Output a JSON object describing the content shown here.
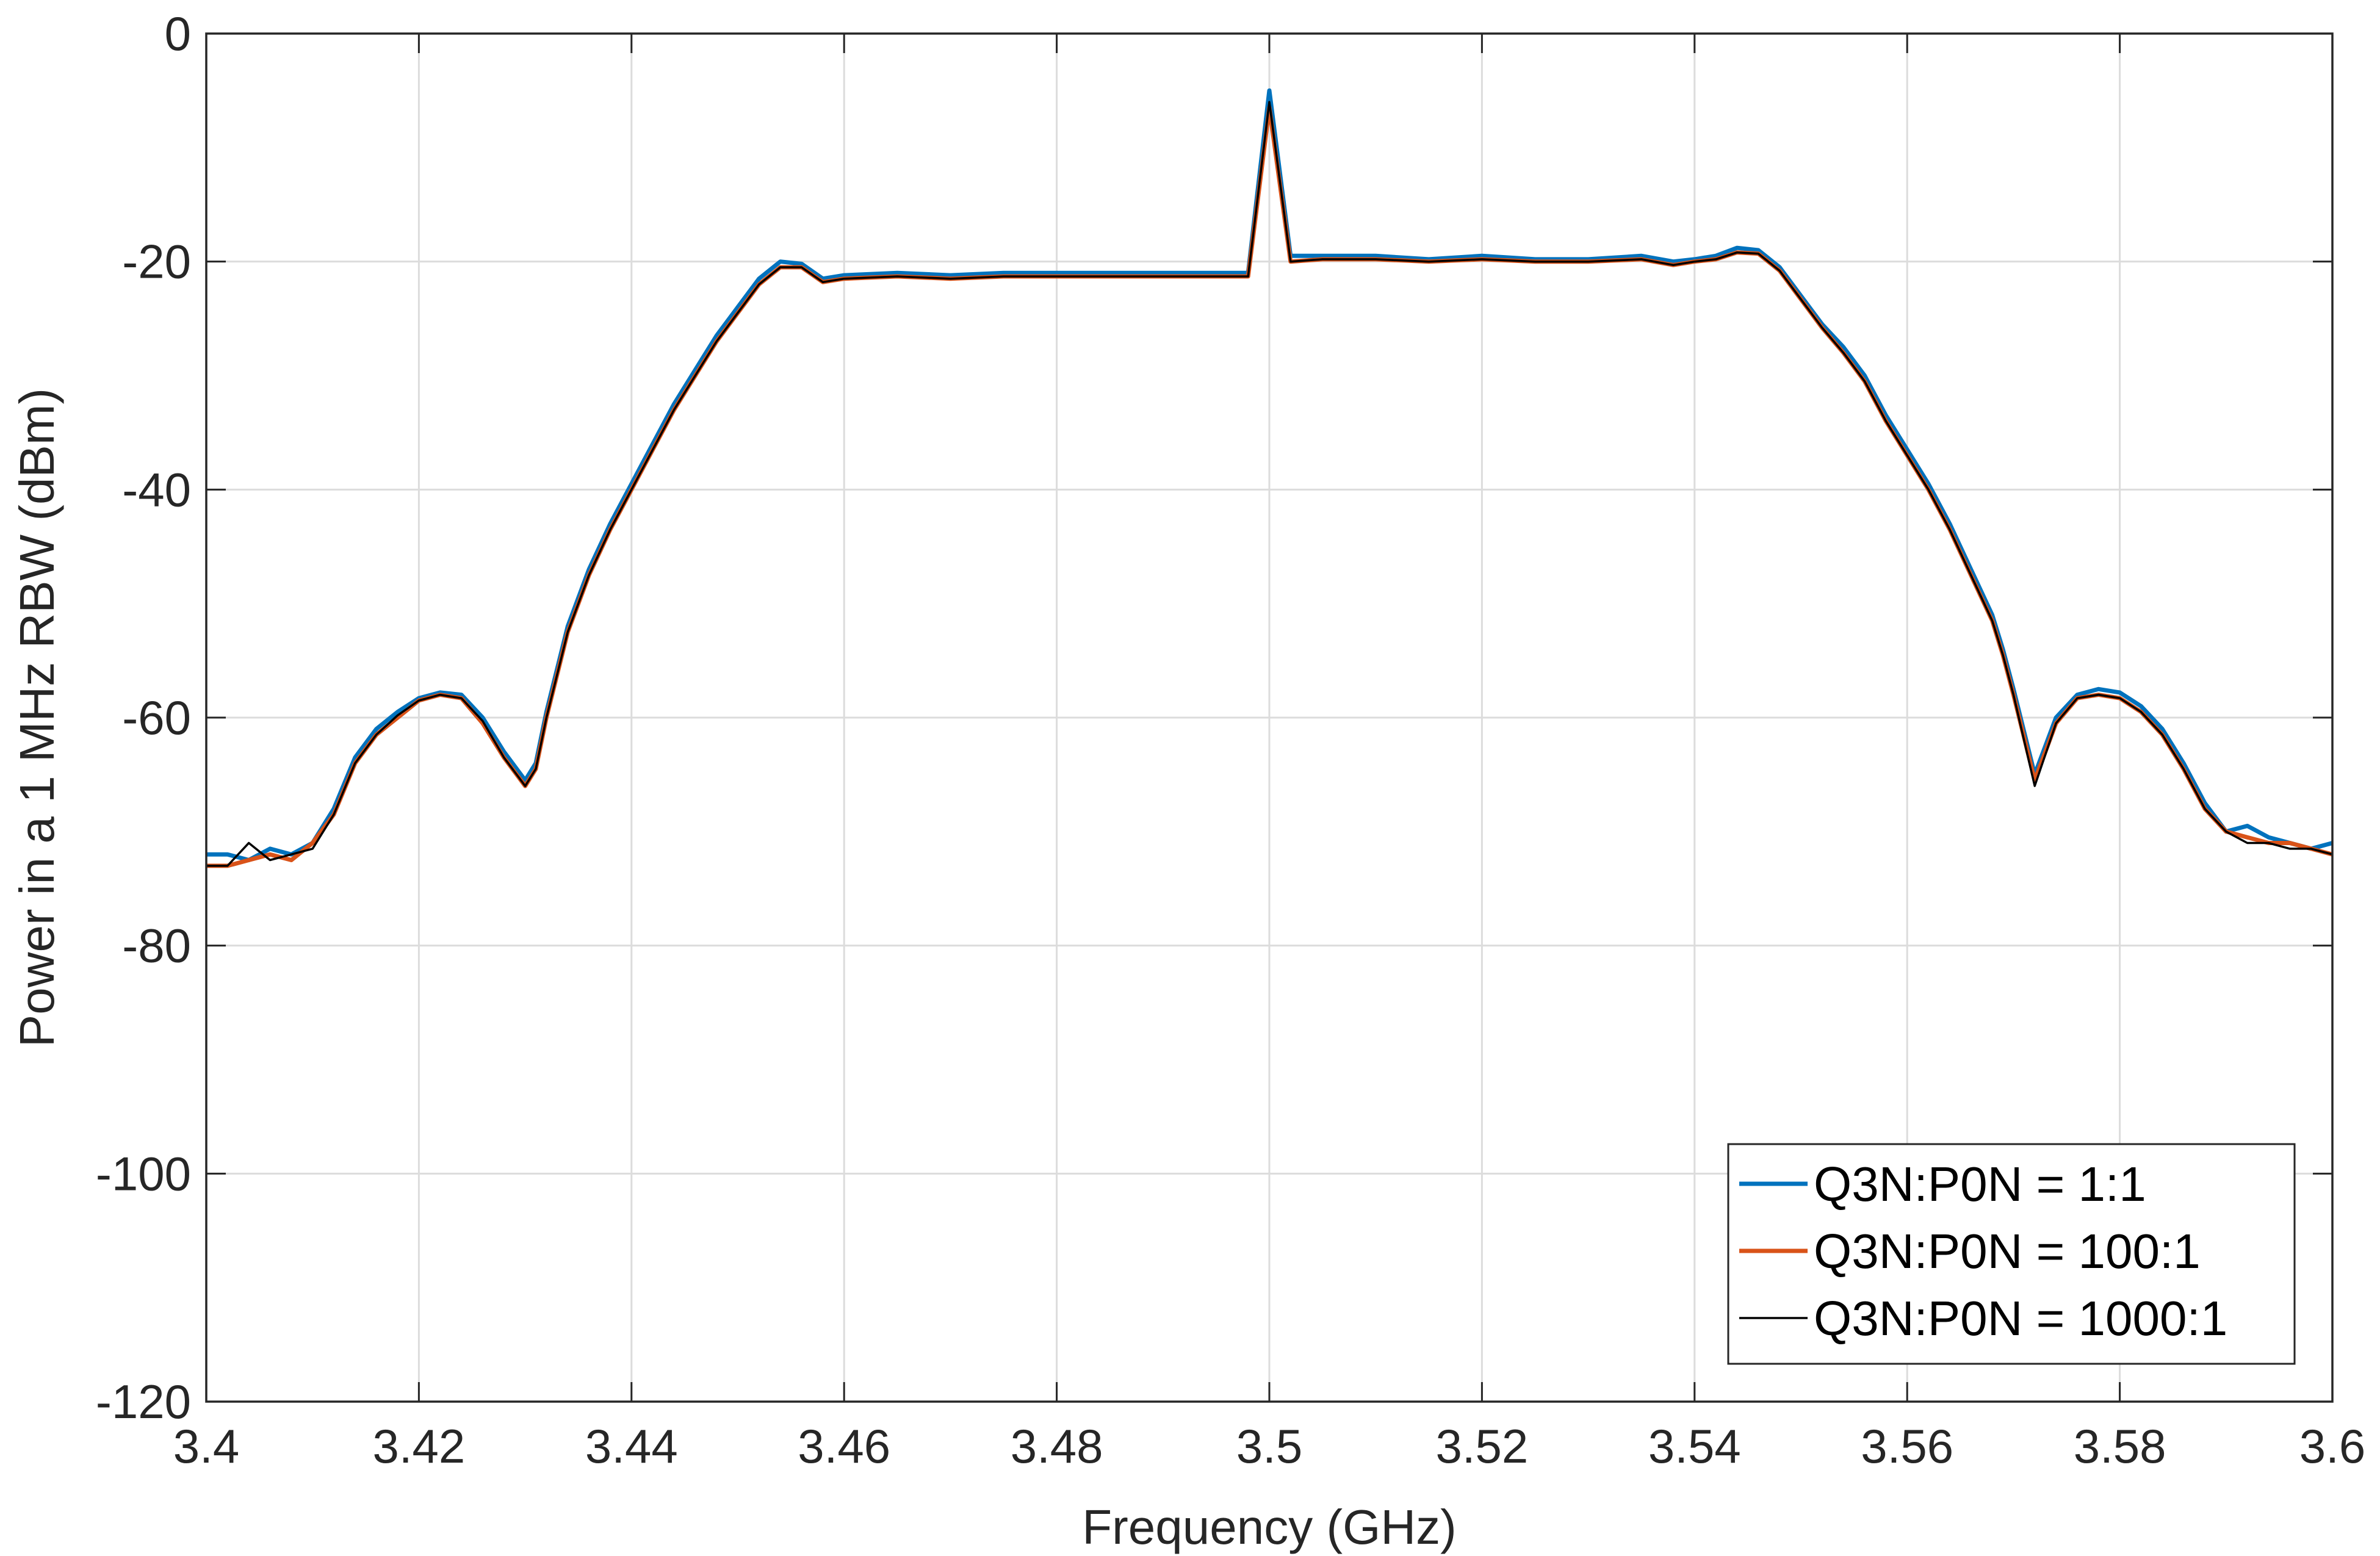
{
  "chart_data": {
    "type": "line",
    "xlabel": "Frequency (GHz)",
    "ylabel": "Power in a 1 MHz RBW (dBm)",
    "xlim": [
      3.4,
      3.6
    ],
    "ylim": [
      -120,
      0
    ],
    "xticks": [
      3.4,
      3.42,
      3.44,
      3.46,
      3.48,
      3.5,
      3.52,
      3.54,
      3.56,
      3.58,
      3.6
    ],
    "xtick_labels": [
      "3.4",
      "3.42",
      "3.44",
      "3.46",
      "3.48",
      "3.5",
      "3.52",
      "3.54",
      "3.56",
      "3.58",
      "3.6"
    ],
    "yticks": [
      0,
      -20,
      -40,
      -60,
      -80,
      -100,
      -120
    ],
    "ytick_labels": [
      "0",
      "-20",
      "-40",
      "-60",
      "-80",
      "-100",
      "-120"
    ],
    "grid": true,
    "legend_position": "bottom-right",
    "x": [
      3.4,
      3.402,
      3.404,
      3.406,
      3.408,
      3.41,
      3.412,
      3.414,
      3.416,
      3.418,
      3.42,
      3.422,
      3.424,
      3.426,
      3.428,
      3.43,
      3.431,
      3.432,
      3.434,
      3.436,
      3.438,
      3.44,
      3.442,
      3.444,
      3.446,
      3.448,
      3.45,
      3.452,
      3.454,
      3.456,
      3.458,
      3.46,
      3.465,
      3.47,
      3.475,
      3.48,
      3.485,
      3.49,
      3.495,
      3.498,
      3.5,
      3.502,
      3.505,
      3.51,
      3.515,
      3.52,
      3.525,
      3.53,
      3.535,
      3.538,
      3.54,
      3.542,
      3.544,
      3.546,
      3.548,
      3.55,
      3.552,
      3.554,
      3.556,
      3.558,
      3.56,
      3.562,
      3.564,
      3.566,
      3.568,
      3.569,
      3.57,
      3.572,
      3.574,
      3.576,
      3.578,
      3.58,
      3.582,
      3.584,
      3.586,
      3.588,
      3.59,
      3.592,
      3.594,
      3.596,
      3.598,
      3.6
    ],
    "series": [
      {
        "name": "Q3N:P0N = 1:1",
        "color": "#0072BD",
        "values": [
          -72,
          -72,
          -72.5,
          -71.5,
          -72,
          -71,
          -68,
          -63.5,
          -61,
          -59.5,
          -58.3,
          -57.8,
          -58,
          -60,
          -63,
          -65.5,
          -64,
          -59.5,
          -52,
          -47,
          -43,
          -39.5,
          -36,
          -32.5,
          -29.5,
          -26.5,
          -24,
          -21.5,
          -20,
          -20.2,
          -21.5,
          -21.2,
          -21,
          -21.2,
          -21,
          -21,
          -21,
          -21,
          -21,
          -21,
          -5,
          -19.5,
          -19.5,
          -19.5,
          -19.8,
          -19.5,
          -19.8,
          -19.8,
          -19.5,
          -20,
          -19.8,
          -19.5,
          -18.8,
          -19,
          -20.5,
          -23,
          -25.5,
          -27.5,
          -30,
          -33.5,
          -36.5,
          -39.5,
          -43,
          -47,
          -51,
          -54,
          -57.5,
          -65,
          -60,
          -58,
          -57.5,
          -57.8,
          -59,
          -61,
          -64,
          -67.5,
          -70,
          -69.5,
          -70.5,
          -71,
          -71.5,
          -71
        ]
      },
      {
        "name": "Q3N:P0N = 100:1",
        "color": "#D95319",
        "values": [
          -73,
          -73,
          -72.5,
          -72,
          -72.5,
          -71,
          -68.5,
          -64,
          -61.5,
          -60,
          -58.5,
          -58,
          -58.3,
          -60.5,
          -63.5,
          -66,
          -64.5,
          -60,
          -52.5,
          -47.5,
          -43.5,
          -40,
          -36.5,
          -33,
          -30,
          -27,
          -24.5,
          -22,
          -20.5,
          -20.5,
          -21.8,
          -21.5,
          -21.3,
          -21.5,
          -21.3,
          -21.3,
          -21.3,
          -21.3,
          -21.3,
          -21.3,
          -6.5,
          -20,
          -19.8,
          -19.8,
          -20,
          -19.8,
          -20,
          -20,
          -19.8,
          -20.3,
          -20,
          -19.8,
          -19.2,
          -19.3,
          -20.8,
          -23.3,
          -25.8,
          -28,
          -30.5,
          -34,
          -37,
          -40,
          -43.5,
          -47.5,
          -51.5,
          -54.5,
          -58,
          -65.5,
          -60.5,
          -58.3,
          -58,
          -58.3,
          -59.5,
          -61.5,
          -64.5,
          -68,
          -70,
          -70.5,
          -71,
          -71,
          -71.5,
          -72
        ]
      },
      {
        "name": "Q3N:P0N = 1000:1",
        "color": "#000000",
        "values": [
          -73,
          -73,
          -71,
          -72.5,
          -72,
          -71.5,
          -68.5,
          -64,
          -61.5,
          -59.8,
          -58.5,
          -58,
          -58.3,
          -60.3,
          -63.5,
          -66,
          -64.5,
          -60,
          -52.5,
          -47.5,
          -43.5,
          -40,
          -36.5,
          -33,
          -30,
          -27,
          -24.5,
          -22,
          -20.5,
          -20.5,
          -21.8,
          -21.5,
          -21.3,
          -21.5,
          -21.3,
          -21.3,
          -21.3,
          -21.3,
          -21.3,
          -21.3,
          -6,
          -20,
          -19.8,
          -19.8,
          -20,
          -19.8,
          -20,
          -20,
          -19.8,
          -20.3,
          -20,
          -19.8,
          -19.2,
          -19.3,
          -20.8,
          -23.3,
          -25.8,
          -28,
          -30.5,
          -34,
          -37,
          -40,
          -43.5,
          -47.5,
          -51.5,
          -54.5,
          -58,
          -66,
          -60.5,
          -58.3,
          -58,
          -58.3,
          -59.5,
          -61.5,
          -64.5,
          -68,
          -70,
          -71,
          -71,
          -71.5,
          -71.5,
          -72
        ]
      }
    ]
  }
}
